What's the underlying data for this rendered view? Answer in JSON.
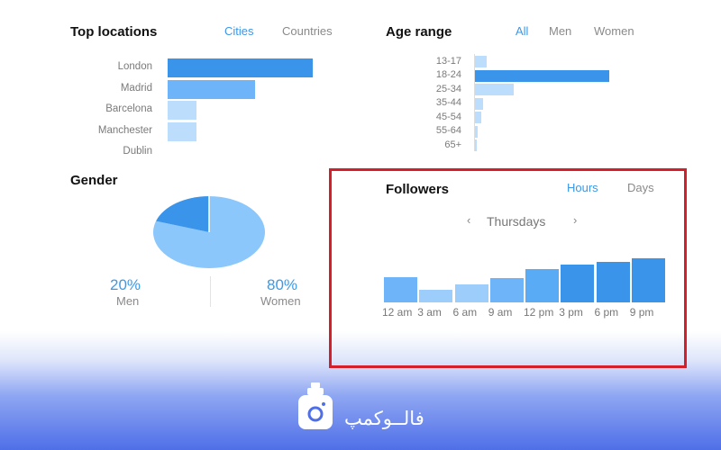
{
  "locations": {
    "title": "Top locations",
    "tabs": [
      "Cities",
      "Countries"
    ],
    "active_tab": "Cities",
    "items": [
      {
        "label": "London",
        "value": 100
      },
      {
        "label": "Madrid",
        "value": 60
      },
      {
        "label": "Barcelona",
        "value": 20
      },
      {
        "label": "Manchester",
        "value": 20
      },
      {
        "label": "Dublin",
        "value": 0
      }
    ]
  },
  "age": {
    "title": "Age range",
    "tabs": [
      "All",
      "Men",
      "Women"
    ],
    "active_tab": "All",
    "items": [
      {
        "label": "13-17",
        "value": 9
      },
      {
        "label": "18-24",
        "value": 100
      },
      {
        "label": "25-34",
        "value": 29
      },
      {
        "label": "35-44",
        "value": 6
      },
      {
        "label": "45-54",
        "value": 5
      },
      {
        "label": "55-64",
        "value": 2
      },
      {
        "label": "65+",
        "value": 1
      }
    ]
  },
  "gender": {
    "title": "Gender",
    "men_pct": "20%",
    "men_label": "Men",
    "women_pct": "80%",
    "women_label": "Women",
    "men_value": 20,
    "women_value": 80
  },
  "followers": {
    "title": "Followers",
    "tabs": [
      "Hours",
      "Days"
    ],
    "active_tab": "Hours",
    "day": "Thursdays",
    "prev": "‹",
    "next": "›"
  },
  "chart_data": {
    "type": "bar",
    "categories": [
      "12 am",
      "3 am",
      "6 am",
      "9 am",
      "12 pm",
      "3 pm",
      "6 pm",
      "9 pm"
    ],
    "values": [
      28,
      14,
      20,
      27,
      37,
      42,
      45,
      49
    ],
    "title": "Followers",
    "xlabel": "",
    "ylabel": "",
    "ylim": [
      0,
      50
    ],
    "grid": false,
    "colors": [
      "#6db5f8",
      "#9dcefb",
      "#9dcefb",
      "#6db5f8",
      "#5aabf5",
      "#3a94ea",
      "#3a94ea",
      "#3a94ea"
    ]
  },
  "colors": {
    "accent": "#3d97e6",
    "bar_dark": "#3a94ea",
    "bar_mid": "#6db5f8",
    "bar_light": "#bcdefc",
    "highlight_border": "#d41f2a"
  },
  "brand": {
    "name": "فالــوکمپ",
    "icon": "camera-badge-icon"
  }
}
